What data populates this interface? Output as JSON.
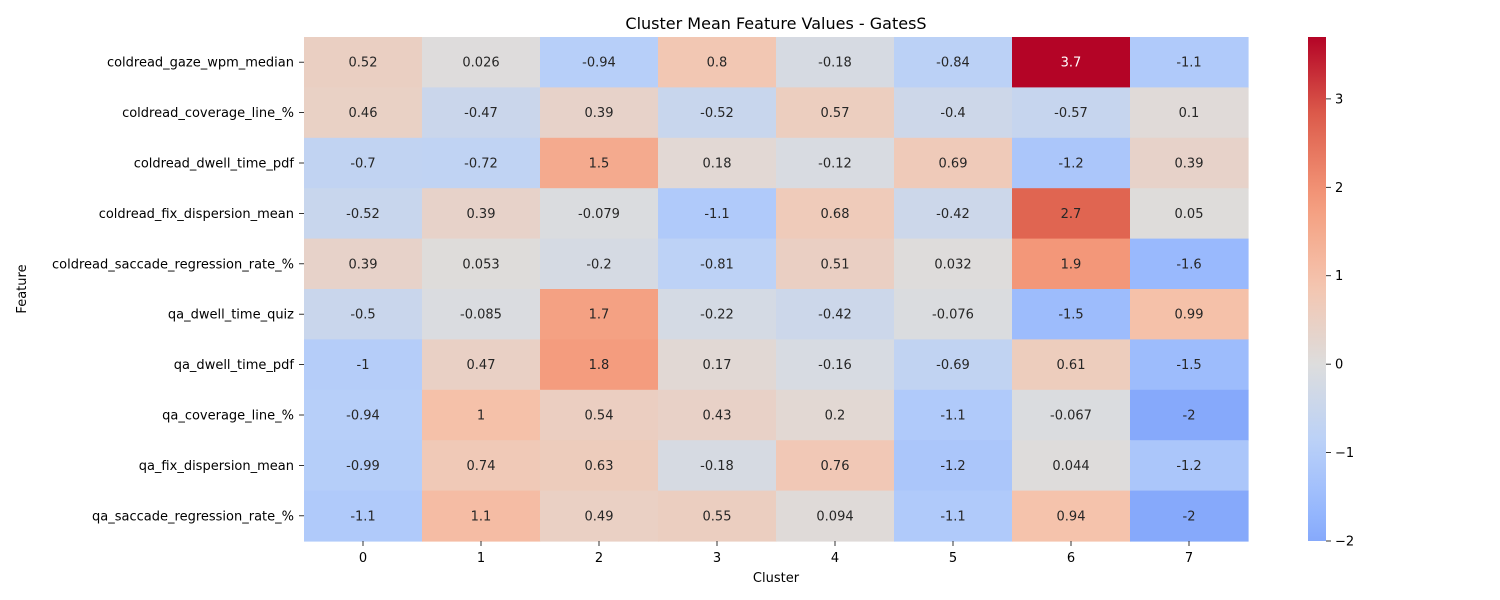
{
  "chart_data": {
    "type": "heatmap",
    "title": "Cluster Mean Feature Values - GatesS",
    "xlabel": "Cluster",
    "ylabel": "Feature",
    "columns": [
      "0",
      "1",
      "2",
      "3",
      "4",
      "5",
      "6",
      "7"
    ],
    "rows": [
      "coldread_gaze_wpm_median",
      "coldread_coverage_line_%",
      "coldread_dwell_time_pdf",
      "coldread_fix_dispersion_mean",
      "coldread_saccade_regression_rate_%",
      "qa_dwell_time_quiz",
      "qa_dwell_time_pdf",
      "qa_coverage_line_%",
      "qa_fix_dispersion_mean",
      "qa_saccade_regression_rate_%"
    ],
    "values": [
      [
        0.52,
        0.026,
        -0.94,
        0.8,
        -0.18,
        -0.84,
        3.7,
        -1.1
      ],
      [
        0.46,
        -0.47,
        0.39,
        -0.52,
        0.57,
        -0.4,
        -0.57,
        0.1
      ],
      [
        -0.7,
        -0.72,
        1.5,
        0.18,
        -0.12,
        0.69,
        -1.2,
        0.39
      ],
      [
        -0.52,
        0.39,
        -0.079,
        -1.1,
        0.68,
        -0.42,
        2.7,
        0.05
      ],
      [
        0.39,
        0.053,
        -0.2,
        -0.81,
        0.51,
        0.032,
        1.9,
        -1.6
      ],
      [
        -0.5,
        -0.085,
        1.7,
        -0.22,
        -0.42,
        -0.076,
        -1.5,
        0.99
      ],
      [
        -1,
        0.47,
        1.8,
        0.17,
        -0.16,
        -0.69,
        0.61,
        -1.5
      ],
      [
        -0.94,
        1,
        0.54,
        0.43,
        0.2,
        -1.1,
        -0.067,
        -2
      ],
      [
        -0.99,
        0.74,
        0.63,
        -0.18,
        0.76,
        -1.2,
        0.044,
        -1.2
      ],
      [
        -1.1,
        1.1,
        0.49,
        0.55,
        0.094,
        -1.1,
        0.94,
        -2
      ]
    ],
    "colormap": "coolwarm",
    "center": 0,
    "vmin": -2,
    "vmax": 3.7,
    "colorbar_ticks": [
      -2,
      -1,
      0,
      1,
      2,
      3
    ],
    "colorbar_tick_labels": [
      "−2",
      "−1",
      "0",
      "1",
      "2",
      "3"
    ],
    "annotated": true,
    "grid": false
  }
}
